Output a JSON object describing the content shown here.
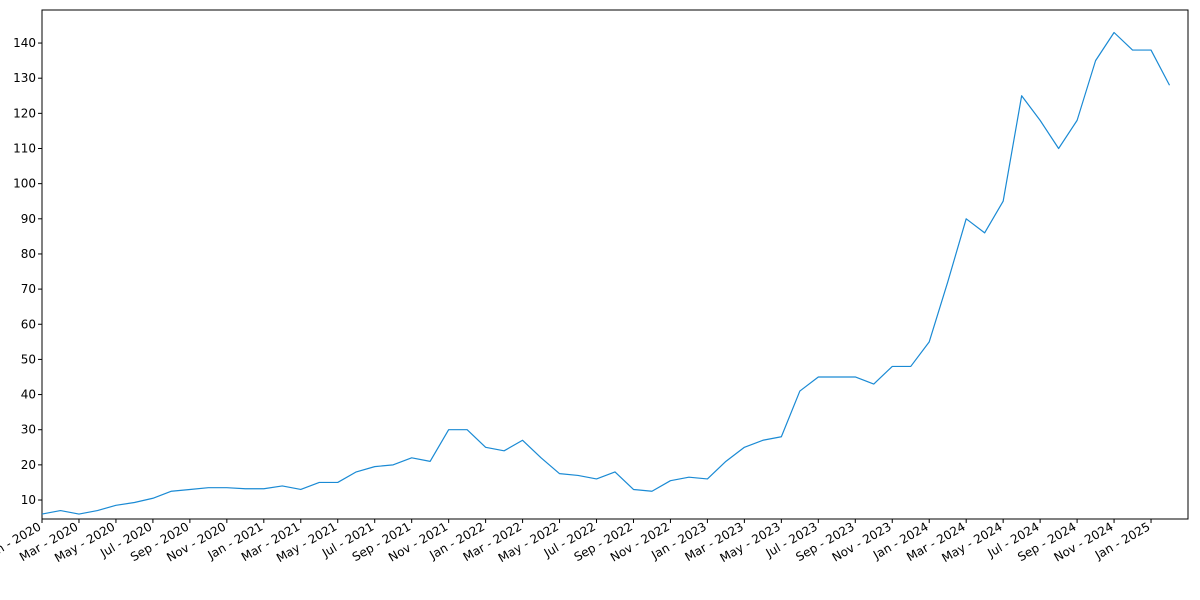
{
  "chart_data": {
    "type": "line",
    "x": [
      "2020-01",
      "2020-02",
      "2020-03",
      "2020-04",
      "2020-05",
      "2020-06",
      "2020-07",
      "2020-08",
      "2020-09",
      "2020-10",
      "2020-11",
      "2020-12",
      "2021-01",
      "2021-02",
      "2021-03",
      "2021-04",
      "2021-05",
      "2021-06",
      "2021-07",
      "2021-08",
      "2021-09",
      "2021-10",
      "2021-11",
      "2021-12",
      "2022-01",
      "2022-02",
      "2022-03",
      "2022-04",
      "2022-05",
      "2022-06",
      "2022-07",
      "2022-08",
      "2022-09",
      "2022-10",
      "2022-11",
      "2022-12",
      "2023-01",
      "2023-02",
      "2023-03",
      "2023-04",
      "2023-05",
      "2023-06",
      "2023-07",
      "2023-08",
      "2023-09",
      "2023-10",
      "2023-11",
      "2023-12",
      "2024-01",
      "2024-02",
      "2024-03",
      "2024-04",
      "2024-05",
      "2024-06",
      "2024-07",
      "2024-08",
      "2024-09",
      "2024-10",
      "2024-11",
      "2024-12",
      "2025-01",
      "2025-02"
    ],
    "series": [
      {
        "color": "#1a8ad4",
        "values": [
          6,
          7,
          6,
          7,
          8.5,
          9.3,
          10.5,
          12.5,
          13,
          13.5,
          13.5,
          13.2,
          13.2,
          14,
          13,
          15,
          15,
          18,
          19.5,
          20,
          22,
          21,
          30,
          30,
          25,
          24,
          27,
          22,
          17.5,
          17,
          16,
          18,
          13,
          12.5,
          15.5,
          16.5,
          16,
          21,
          25,
          27,
          28,
          41,
          45,
          45,
          45,
          43,
          48,
          48,
          55,
          72,
          90,
          86,
          95,
          125,
          118,
          110,
          118,
          135,
          143,
          138,
          138,
          128
        ]
      }
    ],
    "xlim": [
      "2020-01",
      "2025-03"
    ],
    "xticks": [
      {
        "value": "2020-01",
        "label": "Jan - 2020"
      },
      {
        "value": "2020-03",
        "label": "Mar - 2020"
      },
      {
        "value": "2020-05",
        "label": "May - 2020"
      },
      {
        "value": "2020-07",
        "label": "Jul - 2020"
      },
      {
        "value": "2020-09",
        "label": "Sep - 2020"
      },
      {
        "value": "2020-11",
        "label": "Nov - 2020"
      },
      {
        "value": "2021-01",
        "label": "Jan - 2021"
      },
      {
        "value": "2021-03",
        "label": "Mar - 2021"
      },
      {
        "value": "2021-05",
        "label": "May - 2021"
      },
      {
        "value": "2021-07",
        "label": "Jul - 2021"
      },
      {
        "value": "2021-09",
        "label": "Sep - 2021"
      },
      {
        "value": "2021-11",
        "label": "Nov - 2021"
      },
      {
        "value": "2022-01",
        "label": "Jan - 2022"
      },
      {
        "value": "2022-03",
        "label": "Mar - 2022"
      },
      {
        "value": "2022-05",
        "label": "May - 2022"
      },
      {
        "value": "2022-07",
        "label": "Jul - 2022"
      },
      {
        "value": "2022-09",
        "label": "Sep - 2022"
      },
      {
        "value": "2022-11",
        "label": "Nov - 2022"
      },
      {
        "value": "2023-01",
        "label": "Jan - 2023"
      },
      {
        "value": "2023-03",
        "label": "Mar - 2023"
      },
      {
        "value": "2023-05",
        "label": "May - 2023"
      },
      {
        "value": "2023-07",
        "label": "Jul - 2023"
      },
      {
        "value": "2023-09",
        "label": "Sep - 2023"
      },
      {
        "value": "2023-11",
        "label": "Nov - 2023"
      },
      {
        "value": "2024-01",
        "label": "Jan - 2024"
      },
      {
        "value": "2024-03",
        "label": "Mar - 2024"
      },
      {
        "value": "2024-05",
        "label": "May - 2024"
      },
      {
        "value": "2024-07",
        "label": "Jul - 2024"
      },
      {
        "value": "2024-09",
        "label": "Sep - 2024"
      },
      {
        "value": "2024-11",
        "label": "Nov - 2024"
      },
      {
        "value": "2025-01",
        "label": "Jan - 2025"
      }
    ],
    "ylim": [
      4.6,
      149.4
    ],
    "yticks": [
      10,
      20,
      30,
      40,
      50,
      60,
      70,
      80,
      90,
      100,
      110,
      120,
      130,
      140
    ],
    "grid": false
  }
}
